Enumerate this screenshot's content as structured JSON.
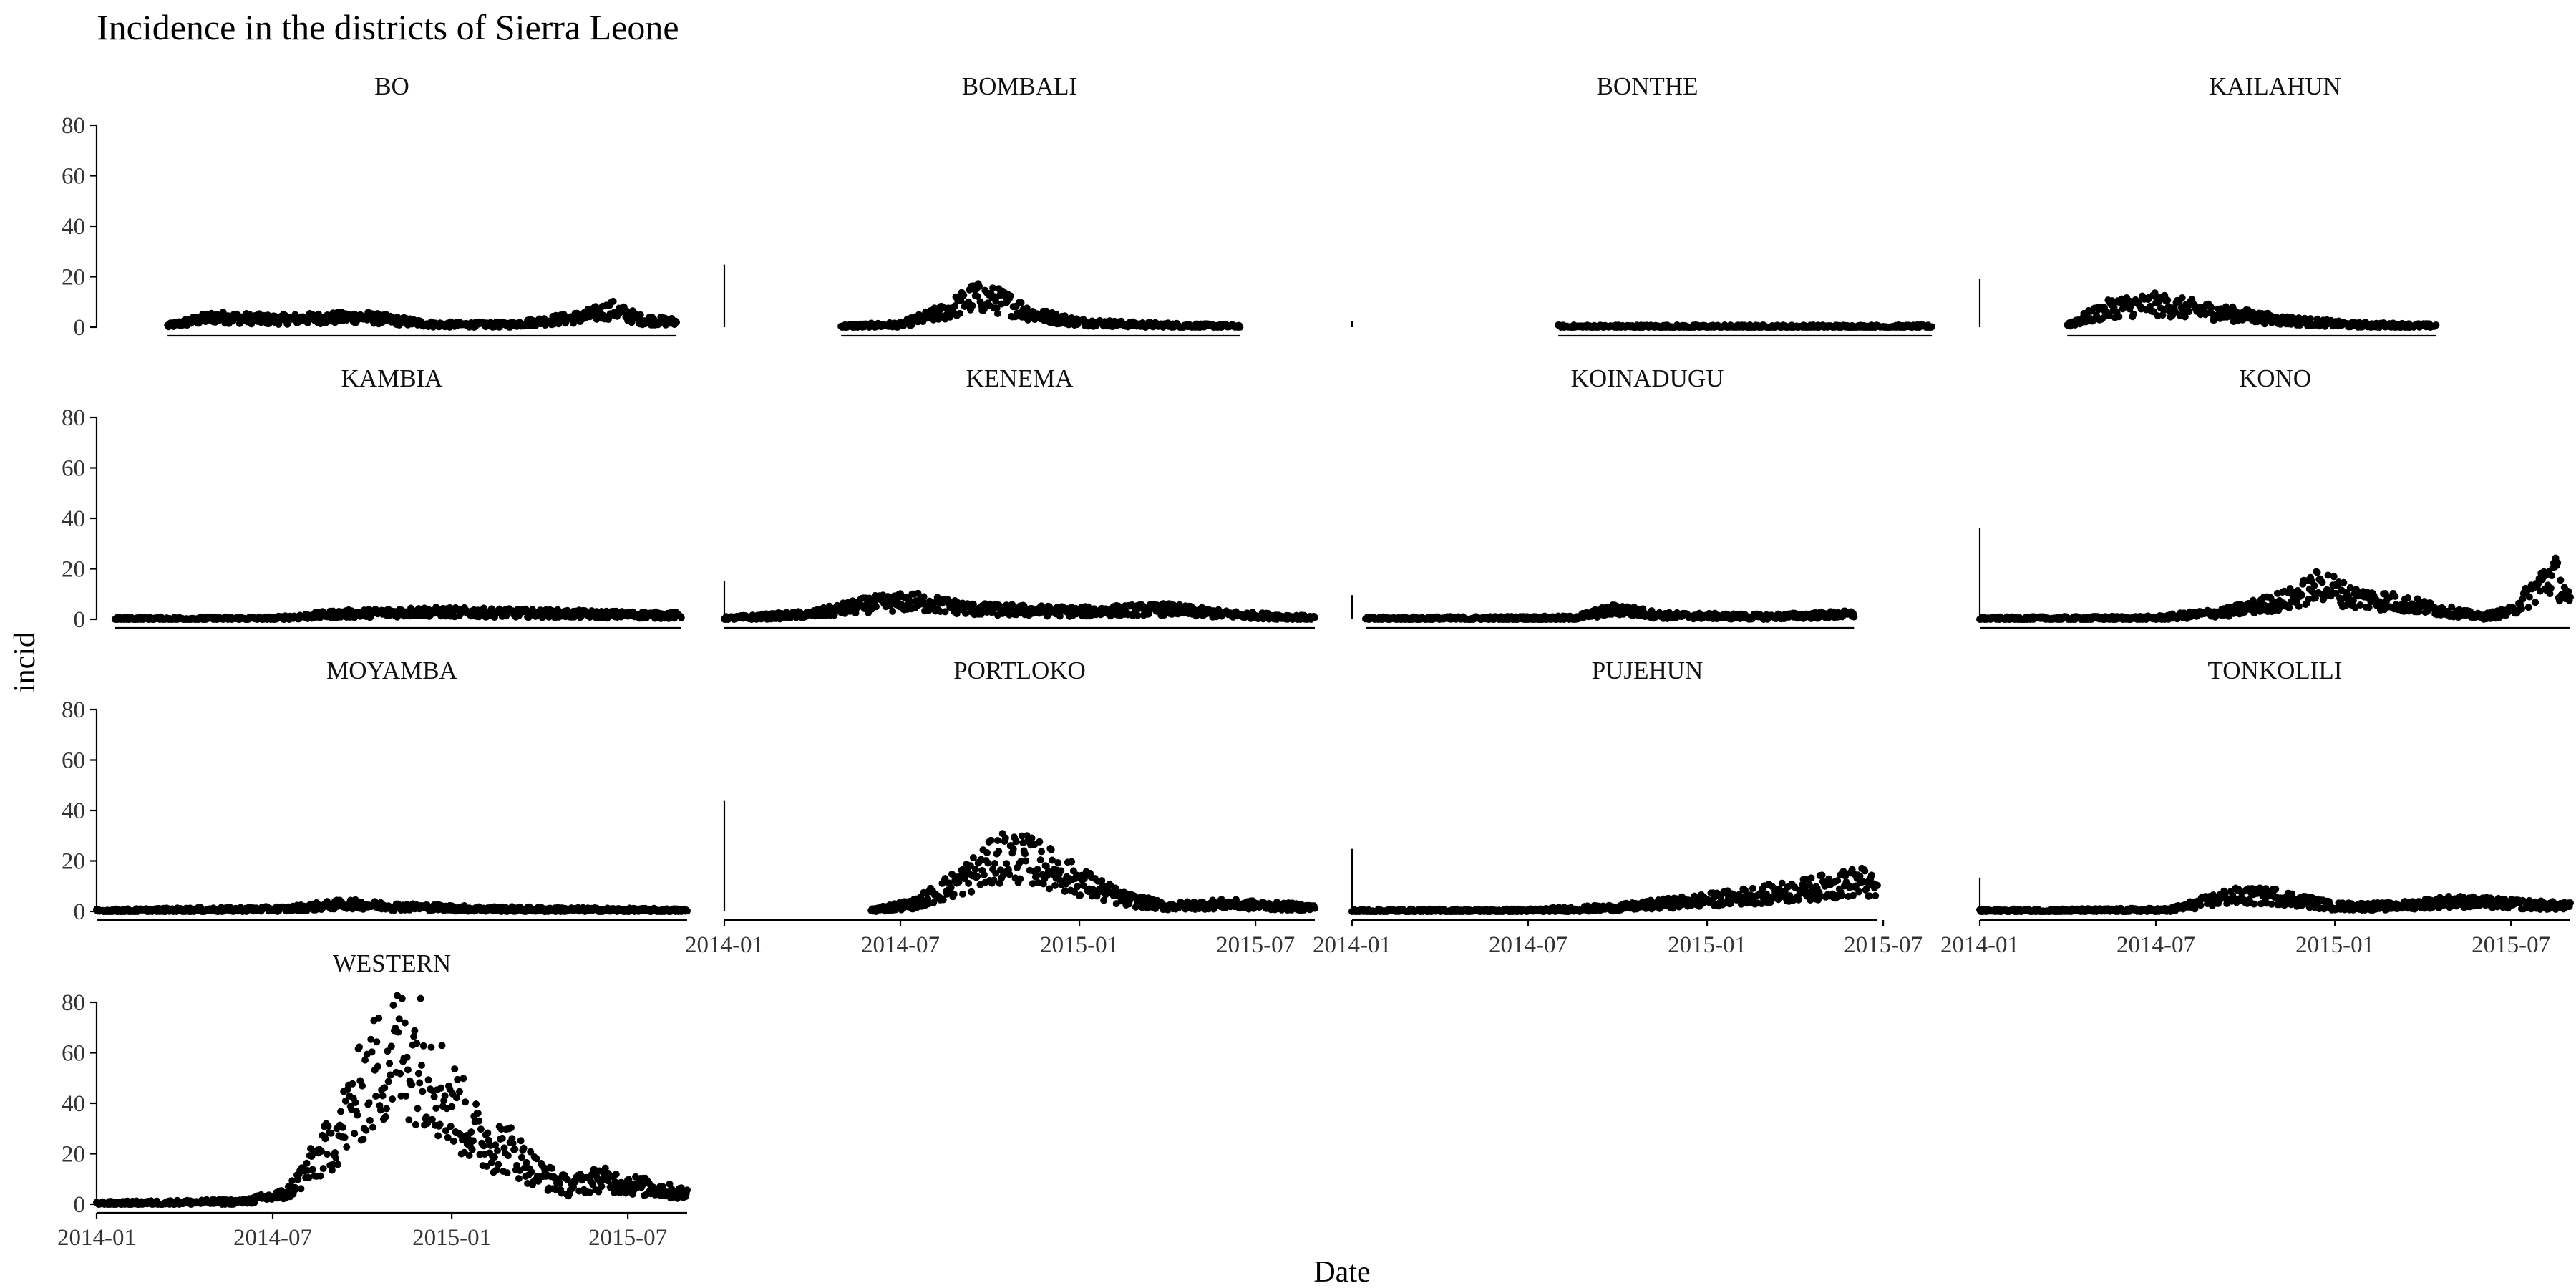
{
  "chart_data": {
    "type": "scatter",
    "title": "Incidence in the districts of Sierra Leone",
    "xlabel": "Date",
    "ylabel": "incid",
    "ylim": [
      0,
      80
    ],
    "y_ticks": [
      0,
      20,
      40,
      60,
      80
    ],
    "x_range": [
      "2014-01-01",
      "2015-08-31"
    ],
    "x_ticks": [
      "2014-01",
      "2014-07",
      "2015-01",
      "2015-07"
    ],
    "grid": false,
    "layout": "facet grid 4 columns x 4 rows, free x per panel",
    "panels": [
      {
        "name": "BO",
        "x_start": "2014-03-15",
        "x_end": "2015-08-20",
        "profile": [
          [
            "2014-03-15",
            0.5
          ],
          [
            "2014-05-01",
            4
          ],
          [
            "2014-07-01",
            3
          ],
          [
            "2014-10-01",
            4
          ],
          [
            "2014-12-15",
            1
          ],
          [
            "2015-03-01",
            1
          ],
          [
            "2015-05-15",
            4
          ],
          [
            "2015-06-15",
            7
          ],
          [
            "2015-07-15",
            3
          ],
          [
            "2015-08-20",
            2
          ]
        ],
        "x_axis": {
          "from": "2014-03-15",
          "to": "2015-08-20",
          "ticks": []
        }
      },
      {
        "name": "BOMBALI",
        "x_start": "2014-05-01",
        "x_end": "2015-06-15",
        "profile": [
          [
            "2014-05-01",
            0.3
          ],
          [
            "2014-07-01",
            1
          ],
          [
            "2014-08-15",
            6
          ],
          [
            "2014-09-15",
            12
          ],
          [
            "2014-10-15",
            10
          ],
          [
            "2014-11-15",
            5
          ],
          [
            "2015-01-01",
            2
          ],
          [
            "2015-03-01",
            1
          ],
          [
            "2015-06-15",
            0.3
          ]
        ],
        "x_axis": {
          "from": "2014-05-01",
          "to": "2015-06-15",
          "ticks": []
        }
      },
      {
        "name": "BONTHE",
        "x_start": "2014-08-01",
        "x_end": "2015-08-20",
        "profile": [
          [
            "2014-08-01",
            0.2
          ],
          [
            "2015-08-20",
            0.2
          ]
        ],
        "x_axis": {
          "from": "2014-08-01",
          "to": "2015-08-20",
          "ticks": []
        }
      },
      {
        "name": "KAILAHUN",
        "x_start": "2014-04-01",
        "x_end": "2015-04-15",
        "profile": [
          [
            "2014-04-01",
            1
          ],
          [
            "2014-05-20",
            8
          ],
          [
            "2014-07-01",
            9
          ],
          [
            "2014-09-01",
            6
          ],
          [
            "2014-11-01",
            3
          ],
          [
            "2015-01-15",
            1
          ],
          [
            "2015-04-15",
            0.5
          ]
        ],
        "x_axis": {
          "from": "2014-04-01",
          "to": "2015-04-15",
          "ticks": []
        }
      },
      {
        "name": "KAMBIA",
        "x_start": "2014-01-20",
        "x_end": "2015-08-25",
        "profile": [
          [
            "2014-01-20",
            0.2
          ],
          [
            "2014-07-01",
            0.3
          ],
          [
            "2014-09-01",
            2
          ],
          [
            "2014-12-01",
            3
          ],
          [
            "2015-03-01",
            2.5
          ],
          [
            "2015-08-25",
            1.5
          ]
        ],
        "x_axis": {
          "from": "2014-01-20",
          "to": "2015-08-25",
          "ticks": []
        }
      },
      {
        "name": "KENEMA",
        "x_start": "2014-01-01",
        "x_end": "2015-08-31",
        "profile": [
          [
            "2014-01-01",
            0.3
          ],
          [
            "2014-04-01",
            2
          ],
          [
            "2014-06-01",
            6
          ],
          [
            "2014-07-15",
            7
          ],
          [
            "2014-09-15",
            4
          ],
          [
            "2015-01-01",
            3
          ],
          [
            "2015-04-01",
            4
          ],
          [
            "2015-06-01",
            2
          ],
          [
            "2015-08-31",
            0.5
          ]
        ],
        "x_axis": {
          "from": "2014-01-01",
          "to": "2015-08-31",
          "ticks": []
        }
      },
      {
        "name": "KOINADUGU",
        "x_start": "2014-01-15",
        "x_end": "2015-06-01",
        "profile": [
          [
            "2014-01-15",
            0.2
          ],
          [
            "2014-08-15",
            0.5
          ],
          [
            "2014-10-01",
            4
          ],
          [
            "2014-11-15",
            1.5
          ],
          [
            "2015-03-01",
            1
          ],
          [
            "2015-06-01",
            2
          ]
        ],
        "x_axis": {
          "from": "2014-01-15",
          "to": "2015-06-01",
          "ticks": []
        }
      },
      {
        "name": "KONO",
        "x_start": "2014-01-01",
        "x_end": "2015-08-31",
        "profile": [
          [
            "2014-01-01",
            0.2
          ],
          [
            "2014-07-01",
            0.5
          ],
          [
            "2014-09-15",
            3
          ],
          [
            "2014-11-15",
            8
          ],
          [
            "2014-12-20",
            14
          ],
          [
            "2015-01-15",
            9
          ],
          [
            "2015-03-01",
            7
          ],
          [
            "2015-04-15",
            4
          ],
          [
            "2015-06-01",
            1
          ],
          [
            "2015-07-01",
            3
          ],
          [
            "2015-08-01",
            14
          ],
          [
            "2015-08-15",
            18
          ],
          [
            "2015-08-31",
            6
          ]
        ],
        "x_axis": {
          "from": "2014-01-01",
          "to": "2015-08-31",
          "ticks": []
        }
      },
      {
        "name": "MOYAMBA",
        "x_start": "2014-01-01",
        "x_end": "2015-08-31",
        "profile": [
          [
            "2014-01-01",
            0.2
          ],
          [
            "2014-07-15",
            1
          ],
          [
            "2014-09-15",
            3
          ],
          [
            "2014-11-01",
            2
          ],
          [
            "2015-02-01",
            1
          ],
          [
            "2015-08-31",
            0.3
          ]
        ],
        "x_axis": {
          "from": "2014-01-01",
          "to": "2015-08-31",
          "ticks": []
        }
      },
      {
        "name": "PORTLOKO",
        "x_start": "2014-06-01",
        "x_end": "2015-08-31",
        "profile": [
          [
            "2014-06-01",
            0.5
          ],
          [
            "2014-07-15",
            3
          ],
          [
            "2014-09-01",
            12
          ],
          [
            "2014-10-15",
            22
          ],
          [
            "2014-11-15",
            20
          ],
          [
            "2015-01-01",
            12
          ],
          [
            "2015-02-15",
            5
          ],
          [
            "2015-04-01",
            2
          ],
          [
            "2015-06-01",
            3
          ],
          [
            "2015-08-31",
            1.5
          ]
        ],
        "x_axis": {
          "from": "2014-01-01",
          "to": "2015-08-31",
          "ticks": [
            "2014-01",
            "2014-07",
            "2015-01",
            "2015-07"
          ]
        }
      },
      {
        "name": "PUJEHUN",
        "x_start": "2014-01-01",
        "x_end": "2015-06-25",
        "profile": [
          [
            "2014-01-01",
            0.2
          ],
          [
            "2014-07-01",
            0.3
          ],
          [
            "2014-10-01",
            1.5
          ],
          [
            "2015-01-15",
            5
          ],
          [
            "2015-04-01",
            8
          ],
          [
            "2015-06-10",
            12
          ],
          [
            "2015-06-25",
            8
          ]
        ],
        "x_axis": {
          "from": "2014-01-01",
          "to": "2015-06-25",
          "ticks": [
            "2014-01",
            "2014-07",
            "2015-01",
            "2015-07"
          ]
        }
      },
      {
        "name": "TONKOLILI",
        "x_start": "2014-01-01",
        "x_end": "2015-08-31",
        "profile": [
          [
            "2014-01-01",
            0.2
          ],
          [
            "2014-07-15",
            0.5
          ],
          [
            "2014-09-15",
            6
          ],
          [
            "2014-11-01",
            6
          ],
          [
            "2015-01-01",
            2
          ],
          [
            "2015-03-01",
            2
          ],
          [
            "2015-05-01",
            4
          ],
          [
            "2015-08-31",
            2
          ]
        ],
        "x_axis": {
          "from": "2014-01-01",
          "to": "2015-08-31",
          "ticks": [
            "2014-01",
            "2014-07",
            "2015-01",
            "2015-07"
          ]
        }
      },
      {
        "name": "WESTERN",
        "x_start": "2014-01-01",
        "x_end": "2015-08-31",
        "profile": [
          [
            "2014-01-01",
            0.3
          ],
          [
            "2014-06-01",
            1
          ],
          [
            "2014-07-15",
            4
          ],
          [
            "2014-09-01",
            25
          ],
          [
            "2014-10-01",
            45
          ],
          [
            "2014-11-01",
            60
          ],
          [
            "2014-12-01",
            58
          ],
          [
            "2015-01-01",
            40
          ],
          [
            "2015-02-01",
            25
          ],
          [
            "2015-03-01",
            22
          ],
          [
            "2015-04-01",
            12
          ],
          [
            "2015-05-01",
            7
          ],
          [
            "2015-06-01",
            10
          ],
          [
            "2015-07-01",
            8
          ],
          [
            "2015-08-31",
            4
          ]
        ],
        "x_axis": {
          "from": "2014-01-01",
          "to": "2015-08-31",
          "ticks": [
            "2014-01",
            "2014-07",
            "2015-01",
            "2015-07"
          ]
        }
      }
    ]
  }
}
